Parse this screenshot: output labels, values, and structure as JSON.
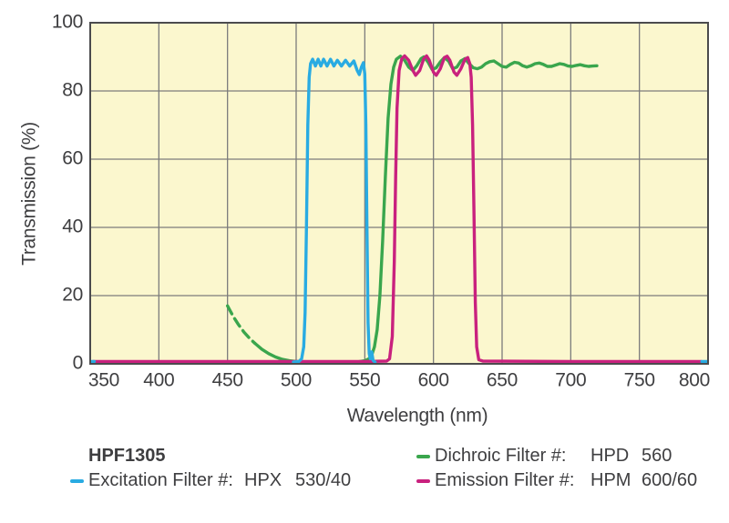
{
  "chart_data": {
    "type": "line",
    "title": "",
    "xlabel": "Wavelength (nm)",
    "ylabel": "Transmission (%)",
    "xlim": [
      350,
      800
    ],
    "ylim": [
      0,
      100
    ],
    "x_ticks": [
      350,
      400,
      450,
      500,
      550,
      600,
      650,
      700,
      750,
      800
    ],
    "y_ticks": [
      0,
      20,
      40,
      60,
      80,
      100
    ],
    "grid": true,
    "legend_position": "below",
    "plot_bg": "#FBF7CE",
    "grid_color": "#7C7C7C",
    "frame_color": "#4B4B4D",
    "text_color": "#3E3E40",
    "series": [
      {
        "name": "Dichroic Filter HPD 560",
        "color": "#3AA64D",
        "segments": [
          {
            "dash": true,
            "points": [
              [
                450,
                17
              ],
              [
                454,
                14
              ],
              [
                458,
                11.5
              ],
              [
                462,
                9.3
              ],
              [
                466,
                7.5
              ],
              [
                470,
                6
              ]
            ]
          },
          {
            "dash": false,
            "points": [
              [
                470,
                6
              ],
              [
                475,
                4.3
              ],
              [
                480,
                3
              ],
              [
                485,
                2
              ],
              [
                490,
                1.3
              ],
              [
                495,
                0.9
              ],
              [
                500,
                0.7
              ],
              [
                510,
                0.5
              ],
              [
                530,
                0.5
              ],
              [
                545,
                0.6
              ],
              [
                550,
                0.9
              ],
              [
                553,
                1.5
              ],
              [
                555,
                2.5
              ],
              [
                557,
                5
              ],
              [
                559,
                10
              ],
              [
                561,
                20
              ],
              [
                563,
                36
              ],
              [
                565,
                55
              ],
              [
                567,
                72
              ],
              [
                569,
                82
              ],
              [
                571,
                87
              ],
              [
                573,
                89.3
              ],
              [
                576,
                90.2
              ],
              [
                579,
                89
              ],
              [
                582,
                87
              ],
              [
                585,
                86
              ],
              [
                588,
                87.5
              ],
              [
                591,
                89.5
              ],
              [
                593,
                90
              ],
              [
                596,
                88.5
              ],
              [
                599,
                86.3
              ],
              [
                602,
                86.8
              ],
              [
                605,
                88.5
              ],
              [
                608,
                89.8
              ],
              [
                611,
                88.8
              ],
              [
                614,
                86.5
              ],
              [
                617,
                87
              ],
              [
                620,
                88.8
              ],
              [
                623,
                89.5
              ],
              [
                626,
                88
              ],
              [
                629,
                86.8
              ],
              [
                632,
                86.5
              ],
              [
                635,
                87
              ],
              [
                638,
                88
              ],
              [
                641,
                88.6
              ],
              [
                644,
                88.8
              ],
              [
                647,
                88
              ],
              [
                650,
                87.2
              ],
              [
                653,
                87
              ],
              [
                656,
                87.8
              ],
              [
                659,
                88.4
              ],
              [
                662,
                88.2
              ],
              [
                665,
                87.4
              ],
              [
                668,
                87
              ],
              [
                671,
                87.4
              ],
              [
                674,
                88
              ],
              [
                677,
                88.2
              ],
              [
                680,
                87.8
              ],
              [
                683,
                87.2
              ],
              [
                686,
                87.2
              ],
              [
                689,
                87.6
              ],
              [
                692,
                88
              ],
              [
                695,
                87.8
              ],
              [
                698,
                87.3
              ],
              [
                701,
                87.2
              ],
              [
                704,
                87.5
              ],
              [
                707,
                87.7
              ],
              [
                710,
                87.4
              ],
              [
                713,
                87.2
              ],
              [
                716,
                87.3
              ],
              [
                719,
                87.4
              ]
            ]
          }
        ]
      },
      {
        "name": "Emission Filter HPM 600/60",
        "color": "#C9217E",
        "segments": [
          {
            "dash": false,
            "points": [
              [
                352,
                0.7
              ],
              [
                450,
                0.7
              ],
              [
                550,
                0.7
              ],
              [
                566,
                0.8
              ],
              [
                568,
                1.5
              ],
              [
                570,
                8
              ],
              [
                571.5,
                30
              ],
              [
                572.5,
                55
              ],
              [
                573.5,
                75
              ],
              [
                575,
                86
              ],
              [
                577,
                89.5
              ],
              [
                579,
                90.3
              ],
              [
                582,
                89
              ],
              [
                585,
                86
              ],
              [
                587,
                84.6
              ],
              [
                590,
                86
              ],
              [
                593,
                89.5
              ],
              [
                595,
                90.3
              ],
              [
                597,
                89
              ],
              [
                600,
                85.5
              ],
              [
                602,
                84.6
              ],
              [
                605,
                86.5
              ],
              [
                608,
                89.8
              ],
              [
                610,
                90.2
              ],
              [
                612,
                89
              ],
              [
                615,
                85.5
              ],
              [
                617,
                84.6
              ],
              [
                620,
                86.5
              ],
              [
                623,
                89.3
              ],
              [
                625,
                89.8
              ],
              [
                626.5,
                88
              ],
              [
                627.5,
                84
              ],
              [
                628.5,
                70
              ],
              [
                629.5,
                45
              ],
              [
                630.5,
                18
              ],
              [
                631.5,
                5
              ],
              [
                633,
                1.2
              ],
              [
                636,
                0.8
              ],
              [
                700,
                0.7
              ],
              [
                795,
                0.7
              ]
            ]
          }
        ]
      },
      {
        "name": "Excitation Filter HPX 530/40",
        "color": "#29ABE2",
        "segments": [
          {
            "dash": false,
            "points": [
              [
                349.5,
                0.7
              ],
              [
                353,
                0.7
              ]
            ]
          },
          {
            "dash": false,
            "points": [
              [
                498,
                0.5
              ],
              [
                502,
                0.7
              ],
              [
                504,
                1.5
              ],
              [
                505.5,
                5
              ],
              [
                506.5,
                15
              ],
              [
                507.5,
                40
              ],
              [
                508.5,
                70
              ],
              [
                509.5,
                84
              ],
              [
                510.5,
                88
              ],
              [
                512,
                89.3
              ],
              [
                514,
                87.3
              ],
              [
                516,
                89.3
              ],
              [
                518,
                87.3
              ],
              [
                520,
                89.3
              ],
              [
                522.5,
                87.3
              ],
              [
                525,
                89.3
              ],
              [
                527.5,
                87.3
              ],
              [
                530,
                89
              ],
              [
                533,
                87.3
              ],
              [
                536,
                89
              ],
              [
                539,
                87.3
              ],
              [
                542,
                88.8
              ],
              [
                544.5,
                86
              ],
              [
                546,
                84.8
              ],
              [
                547.5,
                87
              ],
              [
                549,
                88.3
              ],
              [
                550,
                85
              ],
              [
                550.8,
                70
              ],
              [
                551.6,
                40
              ],
              [
                552.4,
                12
              ],
              [
                553.2,
                3
              ],
              [
                554,
                1.5
              ],
              [
                555,
                3.5
              ],
              [
                556,
                1
              ],
              [
                557.5,
                0.5
              ]
            ]
          },
          {
            "dash": false,
            "points": [
              [
                795.5,
                0.7
              ],
              [
                799.5,
                0.7
              ]
            ]
          }
        ]
      }
    ]
  },
  "legend": {
    "title": "HPF1305",
    "items": [
      {
        "label": "Excitation Filter #:",
        "code": "HPX",
        "value": "530/40",
        "color": "#29ABE2"
      },
      {
        "label": "Dichroic Filter #:",
        "code": "HPD",
        "value": "560",
        "color": "#3AA64D"
      },
      {
        "label": "Emission Filter #:",
        "code": "HPM",
        "value": "600/60",
        "color": "#C9217E"
      }
    ]
  }
}
